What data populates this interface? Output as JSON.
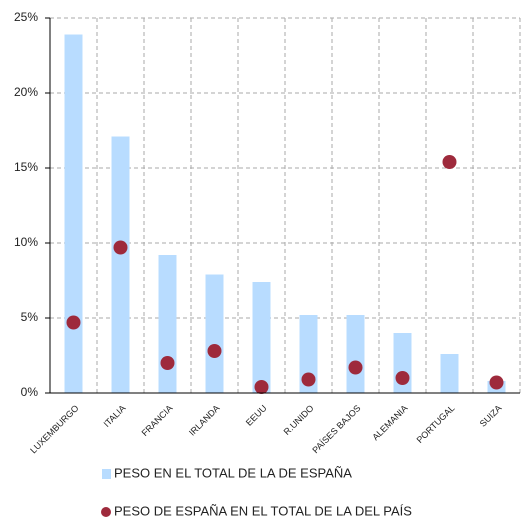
{
  "chart_data": {
    "type": "bar",
    "categories": [
      "LUXEMBURGO",
      "ITALIA",
      "FRANCIA",
      "IRLANDA",
      "EEUU",
      "R.UNIDO",
      "PAÍSES BAJOS",
      "ALEMANIA",
      "PORTUGAL",
      "SUIZA"
    ],
    "series": [
      {
        "name": "PESO EN EL TOTAL DE LA DE ESPAÑA",
        "color": "#b8dcff",
        "mark": "bar",
        "values": [
          23.9,
          17.1,
          9.2,
          7.9,
          7.4,
          5.2,
          5.2,
          4.0,
          2.6,
          0.8
        ]
      },
      {
        "name": "PESO DE ESPAÑA EN EL TOTAL DE LA DEL PAÍS",
        "color": "#9e2a3c",
        "mark": "dot",
        "values": [
          4.7,
          9.7,
          2.0,
          2.8,
          0.4,
          0.9,
          1.7,
          1.0,
          15.4,
          0.7
        ]
      }
    ],
    "ylim": [
      0,
      25
    ],
    "yticks": [
      {
        "value": 0,
        "label": "0%"
      },
      {
        "value": 5,
        "label": "5%"
      },
      {
        "value": 10,
        "label": "10%"
      },
      {
        "value": 15,
        "label": "15%"
      },
      {
        "value": 20,
        "label": "20%"
      },
      {
        "value": 25,
        "label": "25%"
      }
    ],
    "grid": true
  }
}
